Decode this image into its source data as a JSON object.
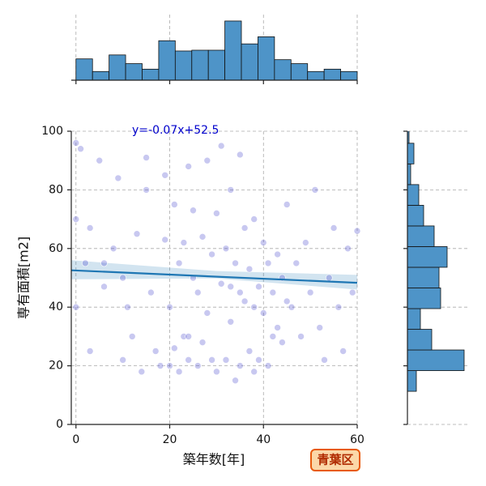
{
  "chart_data": {
    "type": "scatter",
    "xlabel": "築年数[年]",
    "ylabel": "専有面積[m2]",
    "annotation": "y=-0.07x+52.5",
    "badge": "青葉区",
    "xlim": [
      -1,
      60
    ],
    "ylim": [
      0,
      100
    ],
    "xticks": [
      0,
      20,
      40,
      60
    ],
    "yticks": [
      0,
      20,
      40,
      60,
      80,
      100
    ],
    "grid": true,
    "color": "#3a3ac8",
    "line_color": "#1f77b4",
    "hist_color": "#4e94c8",
    "fit": {
      "slope": -0.07,
      "intercept": 52.5
    },
    "ci": {
      "x": [
        -1,
        30,
        60
      ],
      "lower": [
        49.5,
        49.8,
        46
      ],
      "upper": [
        56,
        52.3,
        51
      ]
    },
    "x": [
      0,
      0,
      0,
      1,
      2,
      3,
      5,
      6,
      8,
      9,
      10,
      11,
      12,
      13,
      14,
      15,
      16,
      17,
      18,
      19,
      19,
      20,
      20,
      21,
      21,
      22,
      22,
      23,
      23,
      24,
      24,
      25,
      25,
      26,
      26,
      27,
      27,
      28,
      28,
      29,
      29,
      30,
      30,
      31,
      31,
      32,
      32,
      33,
      33,
      34,
      34,
      35,
      35,
      36,
      36,
      37,
      37,
      38,
      38,
      39,
      39,
      40,
      40,
      41,
      41,
      42,
      42,
      43,
      43,
      44,
      44,
      45,
      45,
      46,
      47,
      48,
      49,
      50,
      51,
      52,
      53,
      54,
      55,
      56,
      57,
      58,
      59,
      60,
      33,
      35,
      24,
      38,
      10,
      6,
      3,
      15
    ],
    "y": [
      96,
      70,
      40,
      94,
      55,
      25,
      90,
      47,
      60,
      84,
      22,
      40,
      30,
      65,
      18,
      91,
      45,
      25,
      20,
      63,
      85,
      20,
      40,
      26,
      75,
      55,
      18,
      62,
      30,
      22,
      88,
      50,
      73,
      20,
      45,
      64,
      28,
      90,
      38,
      22,
      58,
      72,
      18,
      48,
      95,
      22,
      60,
      35,
      80,
      15,
      55,
      92,
      20,
      67,
      42,
      25,
      53,
      18,
      70,
      47,
      22,
      38,
      62,
      55,
      20,
      30,
      45,
      58,
      33,
      50,
      28,
      75,
      42,
      40,
      55,
      30,
      62,
      45,
      80,
      33,
      22,
      50,
      67,
      40,
      25,
      60,
      45,
      66,
      47,
      45,
      30,
      40,
      50,
      55,
      67,
      80
    ],
    "x_hist": {
      "bins": [
        0,
        3.53,
        7.06,
        10.59,
        14.12,
        17.65,
        21.18,
        24.71,
        28.24,
        31.76,
        35.29,
        38.82,
        42.35,
        45.88,
        49.41,
        52.94,
        56.47,
        60
      ],
      "counts": [
        27,
        11,
        32,
        21,
        14,
        50,
        37,
        38,
        38,
        75,
        46,
        55,
        26,
        21,
        11,
        14,
        11
      ],
      "count_lim": [
        0,
        77
      ]
    },
    "y_hist": {
      "bins": [
        11.3,
        18.35,
        25.4,
        32.45,
        39.5,
        46.55,
        53.6,
        60.65,
        67.7,
        74.75,
        81.8,
        88.85,
        95.9,
        102.95
      ],
      "counts": [
        11,
        70,
        30,
        16,
        41,
        39,
        49,
        33,
        20,
        14,
        4,
        8,
        2
      ],
      "count_lim": [
        0,
        77
      ]
    }
  }
}
